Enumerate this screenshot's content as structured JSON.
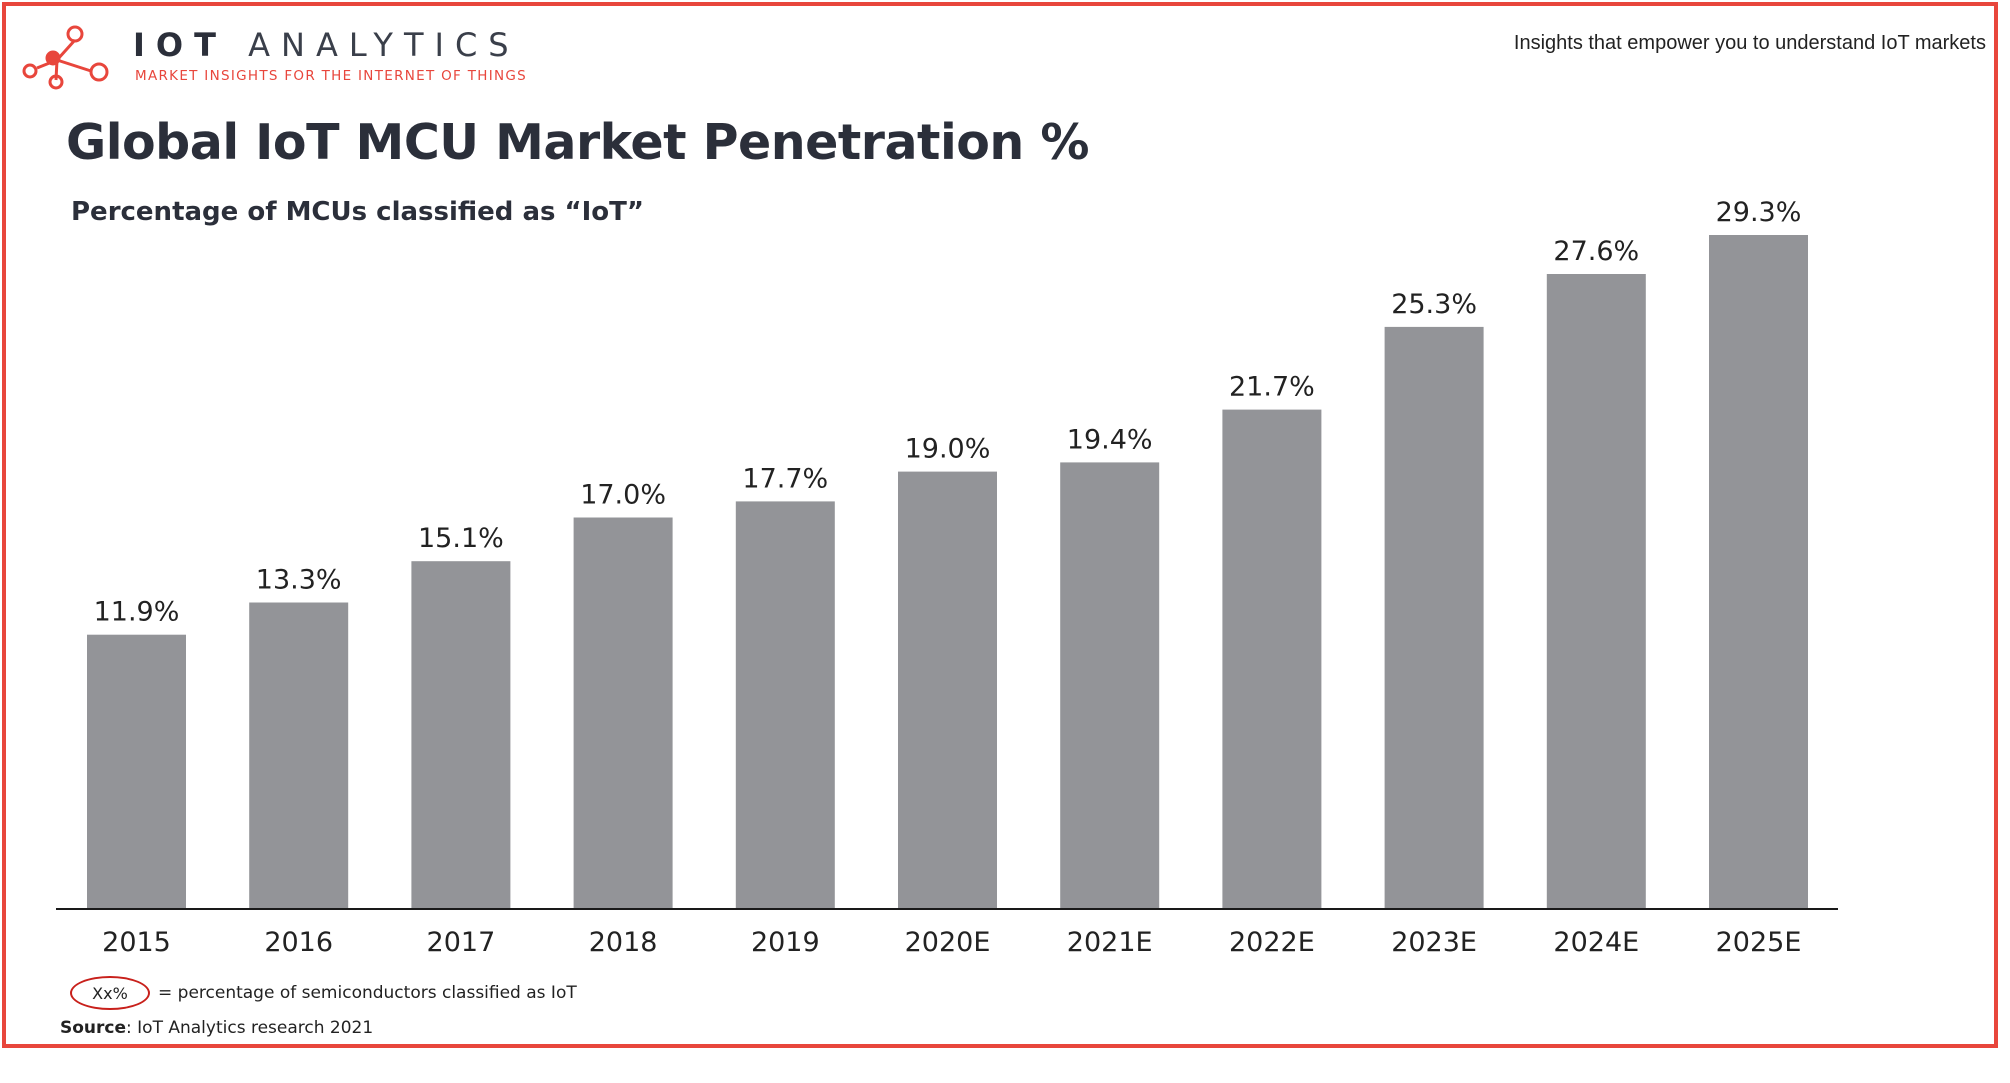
{
  "header": {
    "brand_primary": "IOT",
    "brand_secondary": "ANALYTICS",
    "brand_tagline": "MARKET INSIGHTS FOR THE INTERNET OF THINGS",
    "top_right_tagline": "Insights that empower you to understand IoT markets",
    "logo_icon": "network-nodes-icon"
  },
  "colors": {
    "brand_accent": "#e8463c",
    "bar_fill": "#939498",
    "title_text": "#2b2f3a",
    "legend_oval": "#c8201b"
  },
  "chart_data": {
    "type": "bar",
    "title": "Global IoT MCU Market Penetration %",
    "subtitle": "Percentage of MCUs classified as “IoT”",
    "categories": [
      "2015",
      "2016",
      "2017",
      "2018",
      "2019",
      "2020E",
      "2021E",
      "2022E",
      "2023E",
      "2024E",
      "2025E"
    ],
    "values": [
      11.9,
      13.3,
      15.1,
      17.0,
      17.7,
      19.0,
      19.4,
      21.7,
      25.3,
      27.6,
      29.3
    ],
    "value_labels": [
      "11.9%",
      "13.3%",
      "15.1%",
      "17.0%",
      "17.7%",
      "19.0%",
      "19.4%",
      "21.7%",
      "25.3%",
      "27.6%",
      "29.3%"
    ],
    "unit": "%",
    "xlabel": "",
    "ylabel": "",
    "ylim": [
      0,
      29.3
    ],
    "grid": false,
    "y_axis_visible": false,
    "legend": "none"
  },
  "legend": {
    "marker_text": "Xx%",
    "description": "= percentage of semiconductors classified as IoT"
  },
  "source": {
    "label": "Source",
    "text": ": IoT Analytics research 2021"
  }
}
